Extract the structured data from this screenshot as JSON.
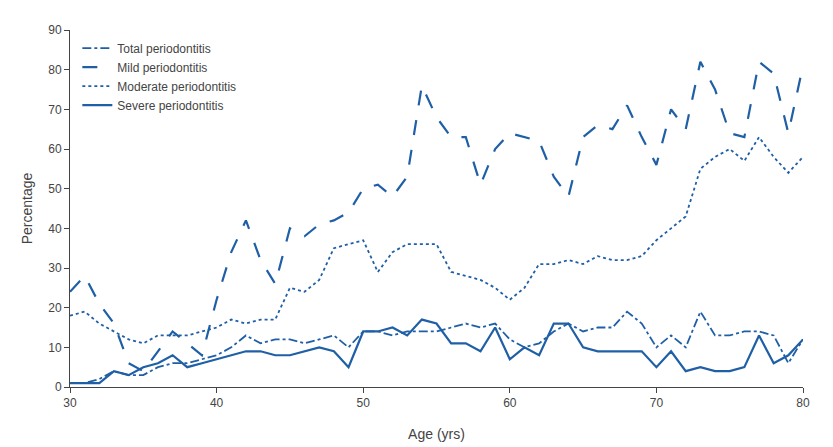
{
  "chart_data": {
    "type": "line",
    "xlabel": "Age (yrs)",
    "ylabel": "Percentage",
    "x": [
      30,
      31,
      32,
      33,
      34,
      35,
      36,
      37,
      38,
      39,
      40,
      41,
      42,
      43,
      44,
      45,
      46,
      47,
      48,
      49,
      50,
      51,
      52,
      53,
      54,
      55,
      56,
      57,
      58,
      59,
      60,
      61,
      62,
      63,
      64,
      65,
      66,
      67,
      68,
      69,
      70,
      71,
      72,
      73,
      74,
      75,
      76,
      77,
      78,
      79,
      80
    ],
    "series": [
      {
        "name": "Total periodontitis",
        "color": "#1f5fa6",
        "line_style": "dashdot",
        "values": [
          1,
          1,
          2,
          4,
          3,
          3,
          5,
          6,
          6,
          7,
          8,
          10,
          13,
          11,
          12,
          12,
          11,
          12,
          13,
          10,
          14,
          14,
          13,
          14,
          14,
          14,
          15,
          16,
          15,
          16,
          12,
          10,
          11,
          14,
          16,
          14,
          15,
          15,
          19,
          16,
          10,
          13,
          10,
          19,
          13,
          13,
          14,
          14,
          13,
          6,
          12
        ]
      },
      {
        "name": "Mild periodontitis",
        "color": "#1f5fa6",
        "line_style": "dashed",
        "values": [
          24,
          28,
          21,
          16,
          6,
          4,
          9,
          14,
          11,
          8,
          22,
          34,
          42,
          32,
          26,
          40,
          38,
          41,
          42,
          44,
          50,
          51,
          48,
          53,
          76,
          68,
          63,
          63,
          51,
          60,
          64,
          63,
          62,
          53,
          48,
          63,
          66,
          65,
          71,
          63,
          56,
          70,
          65,
          82,
          75,
          64,
          63,
          82,
          79,
          64,
          81
        ]
      },
      {
        "name": "Moderate periodontitis",
        "color": "#1f5fa6",
        "line_style": "dotted",
        "values": [
          18,
          19,
          16,
          14,
          12,
          11,
          13,
          13,
          13,
          14,
          15,
          17,
          16,
          17,
          17,
          25,
          24,
          27,
          35,
          36,
          37,
          29,
          34,
          36,
          36,
          36,
          29,
          28,
          27,
          25,
          22,
          25,
          31,
          31,
          32,
          31,
          33,
          32,
          32,
          33,
          37,
          40,
          43,
          55,
          58,
          60,
          57,
          63,
          58,
          54,
          58
        ]
      },
      {
        "name": "Severe periodontitis",
        "color": "#1f5fa6",
        "line_style": "solid",
        "values": [
          1,
          1,
          1,
          4,
          3,
          5,
          6,
          8,
          5,
          6,
          7,
          8,
          9,
          9,
          8,
          8,
          9,
          10,
          9,
          5,
          14,
          14,
          15,
          13,
          17,
          16,
          11,
          11,
          9,
          15,
          7,
          10,
          8,
          16,
          16,
          10,
          9,
          9,
          9,
          9,
          5,
          9,
          4,
          5,
          4,
          4,
          5,
          13,
          6,
          8,
          12
        ]
      }
    ],
    "xlim": [
      30,
      80
    ],
    "ylim": [
      0,
      90
    ],
    "xticks": [
      30,
      40,
      50,
      60,
      70,
      80
    ],
    "yticks": [
      0,
      10,
      20,
      30,
      40,
      50,
      60,
      70,
      80,
      90
    ],
    "grid": false,
    "legend": "upper left"
  }
}
